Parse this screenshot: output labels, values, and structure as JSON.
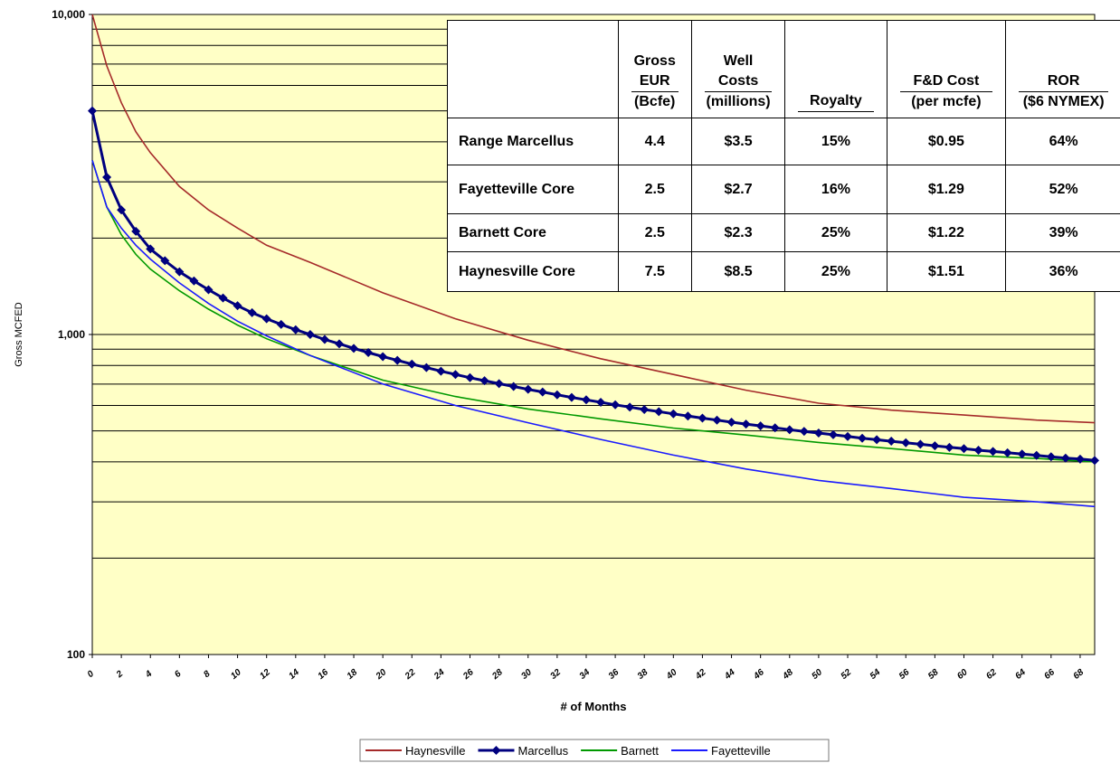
{
  "chart_data": {
    "type": "line",
    "y_scale": "log",
    "ylim": [
      100,
      10000
    ],
    "xlim": [
      0,
      69
    ],
    "xlabel": "# of Months",
    "ylabel": "Gross MCFED",
    "y_ticks": [
      "100",
      "1,000",
      "10,000"
    ],
    "x_ticks": [
      "0",
      "2",
      "4",
      "6",
      "8",
      "10",
      "12",
      "14",
      "16",
      "18",
      "20",
      "22",
      "24",
      "26",
      "28",
      "30",
      "32",
      "34",
      "36",
      "38",
      "40",
      "42",
      "44",
      "46",
      "48",
      "50",
      "52",
      "54",
      "56",
      "58",
      "60",
      "62",
      "64",
      "66",
      "68"
    ],
    "grid": "horizontal",
    "background": "#FFFFC6",
    "legend_position": "bottom",
    "series": [
      {
        "name": "Haynesville",
        "color": "#A52A2A",
        "marker": "none",
        "x": [
          0,
          1,
          2,
          3,
          4,
          6,
          8,
          10,
          12,
          15,
          20,
          25,
          30,
          35,
          40,
          45,
          50,
          55,
          60,
          65,
          69
        ],
        "values": [
          10000,
          6900,
          5300,
          4300,
          3700,
          2900,
          2450,
          2150,
          1900,
          1680,
          1350,
          1120,
          960,
          840,
          750,
          670,
          610,
          580,
          560,
          540,
          530
        ]
      },
      {
        "name": "Marcellus",
        "color": "#00007F",
        "marker": "diamond",
        "x": [
          0,
          1,
          2,
          3,
          4,
          5,
          6,
          7,
          8,
          9,
          10,
          11,
          12,
          13,
          14,
          15,
          16,
          17,
          18,
          19,
          20,
          21,
          22,
          23,
          24,
          25,
          26,
          27,
          28,
          29,
          30,
          31,
          32,
          33,
          34,
          35,
          36,
          37,
          38,
          39,
          40,
          41,
          42,
          43,
          44,
          45,
          46,
          47,
          48,
          49,
          50,
          51,
          52,
          53,
          54,
          55,
          56,
          57,
          58,
          59,
          60,
          61,
          62,
          63,
          64,
          65,
          66,
          67,
          68,
          69
        ],
        "values": [
          5000,
          3100,
          2450,
          2100,
          1850,
          1700,
          1570,
          1470,
          1380,
          1300,
          1230,
          1170,
          1120,
          1075,
          1035,
          1000,
          965,
          935,
          905,
          878,
          853,
          830,
          808,
          788,
          768,
          750,
          733,
          717,
          702,
          688,
          674,
          661,
          648,
          636,
          625,
          614,
          603,
          593,
          583,
          574,
          565,
          556,
          548,
          540,
          532,
          525,
          518,
          511,
          504,
          498,
          492,
          486,
          480,
          474,
          469,
          464,
          459,
          454,
          449,
          444,
          440,
          435,
          431,
          427,
          423,
          419,
          415,
          411,
          408,
          404
        ]
      },
      {
        "name": "Barnett",
        "color": "#009900",
        "marker": "none",
        "x": [
          0,
          1,
          2,
          3,
          4,
          6,
          8,
          10,
          12,
          15,
          20,
          25,
          30,
          35,
          40,
          45,
          50,
          55,
          60,
          65,
          69
        ],
        "values": [
          3500,
          2500,
          2050,
          1780,
          1600,
          1370,
          1200,
          1070,
          970,
          860,
          720,
          640,
          585,
          545,
          510,
          485,
          460,
          440,
          420,
          410,
          400
        ]
      },
      {
        "name": "Fayetteville",
        "color": "#1A1AFF",
        "marker": "none",
        "x": [
          0,
          1,
          2,
          3,
          4,
          6,
          8,
          10,
          12,
          15,
          20,
          25,
          30,
          35,
          40,
          45,
          50,
          55,
          60,
          65,
          69
        ],
        "values": [
          3500,
          2500,
          2150,
          1900,
          1720,
          1450,
          1250,
          1100,
          990,
          860,
          700,
          600,
          530,
          470,
          420,
          380,
          350,
          330,
          310,
          300,
          290
        ]
      }
    ]
  },
  "table": {
    "headers": [
      {
        "top": "",
        "mid": "",
        "bottom": ""
      },
      {
        "top": "Gross",
        "mid": "EUR",
        "bottom": "(Bcfe)"
      },
      {
        "top": "Well",
        "mid": "Costs",
        "bottom": "(millions)"
      },
      {
        "top": "",
        "mid": "Royalty",
        "bottom": ""
      },
      {
        "top": "",
        "mid": "F&D Cost",
        "bottom": "(per mcfe)"
      },
      {
        "top": "",
        "mid": "ROR",
        "bottom": "($6 NYMEX)"
      }
    ],
    "rows": [
      [
        "Range Marcellus",
        "4.4",
        "$3.5",
        "15%",
        "$0.95",
        "64%"
      ],
      [
        "Fayetteville Core",
        "2.5",
        "$2.7",
        "16%",
        "$1.29",
        "52%"
      ],
      [
        "Barnett Core",
        "2.5",
        "$2.3",
        "25%",
        "$1.22",
        "39%"
      ],
      [
        "Haynesville Core",
        "7.5",
        "$8.5",
        "25%",
        "$1.51",
        "36%"
      ]
    ]
  }
}
